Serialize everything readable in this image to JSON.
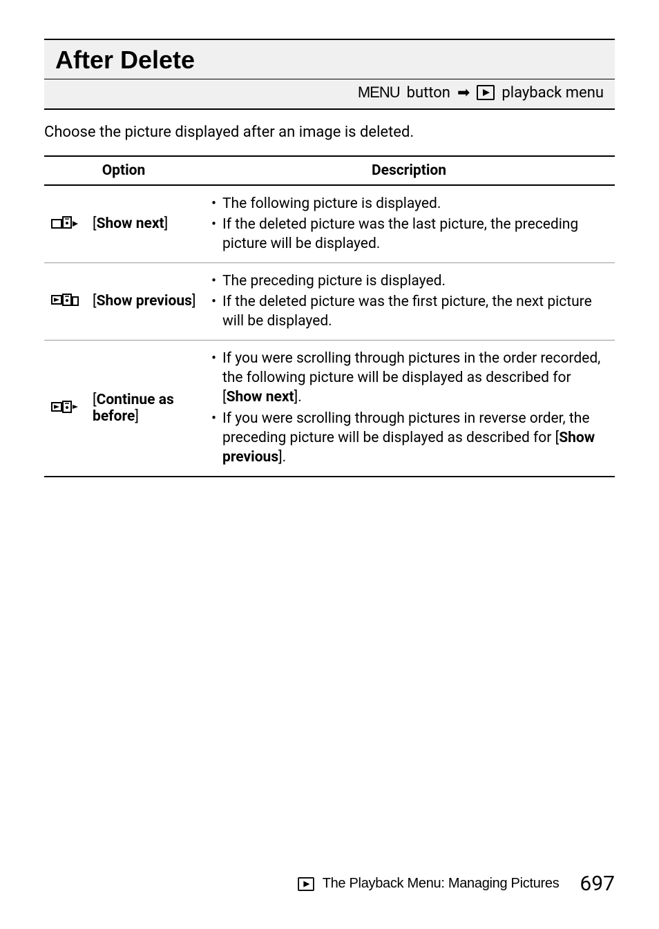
{
  "header": {
    "title": "After Delete",
    "breadcrumb_menu": "MENU",
    "breadcrumb_after_menu": "button",
    "breadcrumb_tail": "playback menu"
  },
  "intro": "Choose the picture displayed after an image is deleted.",
  "table": {
    "col_option": "Option",
    "col_desc": "Description",
    "rows": [
      {
        "icon": "show-next",
        "opt_html": "[<b>Show next</b>]",
        "desc_items": [
          "The following picture is displayed.",
          "If the deleted picture was the last picture, the preceding picture will be displayed."
        ]
      },
      {
        "icon": "show-prev",
        "opt_html": "[<b>Show previous</b>]",
        "desc_items": [
          "The preceding picture is displayed.",
          "If the deleted picture was the first picture, the next picture will be displayed."
        ]
      },
      {
        "icon": "continue",
        "opt_html": "[<b>Continue as before</b>]",
        "desc_items": [
          "If you were scrolling through pictures in the order recorded, the following picture will be displayed as described for [<b>Show next</b>].",
          "If you were scrolling through pictures in reverse order, the preceding picture will be displayed as described for [<b>Show previous</b>]."
        ]
      }
    ]
  },
  "footer": {
    "text": "The Playback Menu: Managing Pictures",
    "page": "697"
  }
}
